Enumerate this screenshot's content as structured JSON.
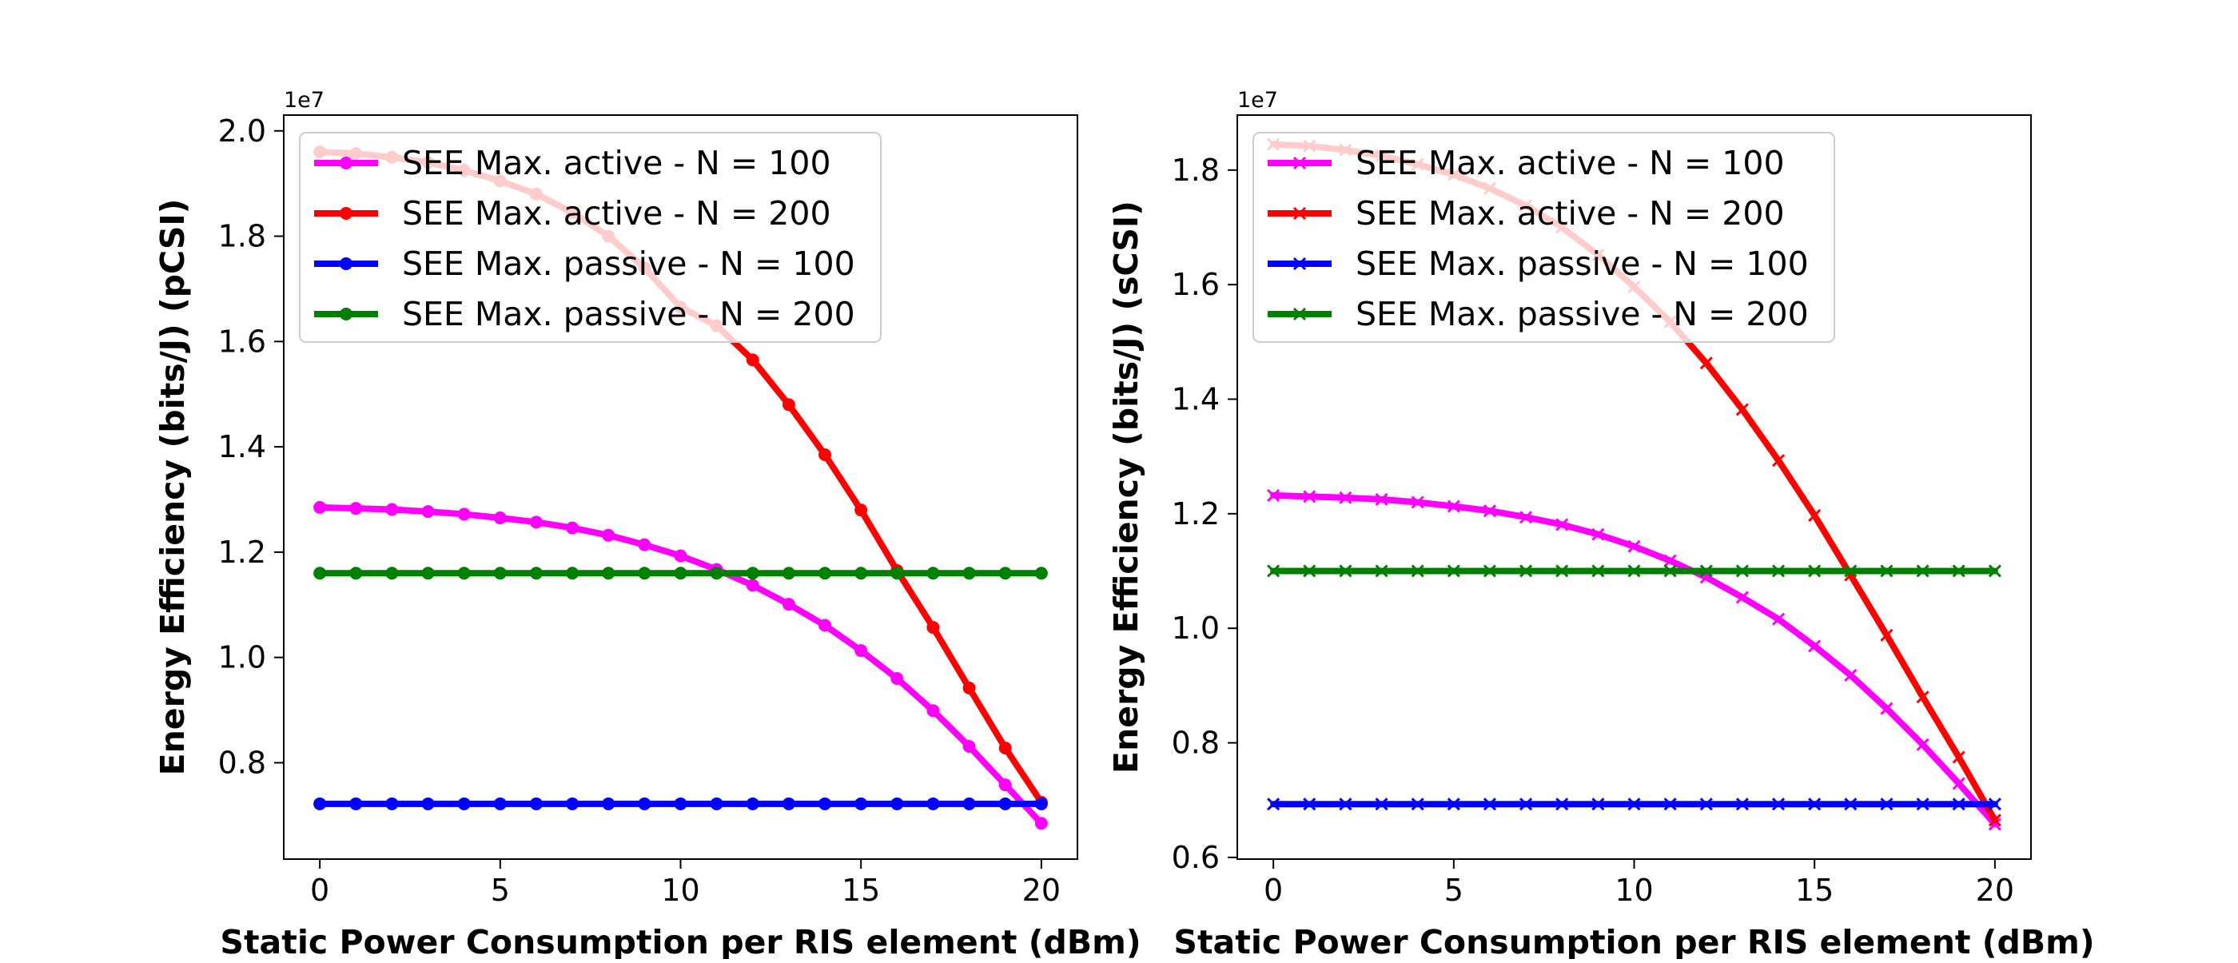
{
  "chart_data": [
    {
      "type": "line",
      "title": "",
      "xlabel": "Static Power Consumption per RIS element (dBm)",
      "ylabel": "Energy Efficiency (bits/J) (pCSI)",
      "y_offset_text": "1e7",
      "y_scale_factor": 10000000,
      "xlim": [
        -1,
        21
      ],
      "ylim": [
        0.617,
        2.03
      ],
      "x_ticks": [
        0,
        5,
        10,
        15,
        20
      ],
      "y_ticks": [
        0.8,
        1.0,
        1.2,
        1.4,
        1.6,
        1.8,
        2.0
      ],
      "grid": false,
      "legend_position": "upper-left",
      "marker": "circle",
      "x": [
        0,
        1,
        2,
        3,
        4,
        5,
        6,
        7,
        8,
        9,
        10,
        11,
        12,
        13,
        14,
        15,
        16,
        17,
        18,
        19,
        20
      ],
      "series": [
        {
          "name": "SEE Max. active - N = 100",
          "color": "#ff00ff",
          "values": [
            1.285,
            1.283,
            1.281,
            1.277,
            1.272,
            1.265,
            1.257,
            1.246,
            1.232,
            1.214,
            1.193,
            1.167,
            1.137,
            1.101,
            1.061,
            1.013,
            0.96,
            0.899,
            0.831,
            0.758,
            0.685
          ]
        },
        {
          "name": "SEE Max. active - N = 200",
          "color": "#ff0000",
          "values": [
            1.96,
            1.957,
            1.95,
            1.94,
            1.925,
            1.905,
            1.88,
            1.845,
            1.8,
            1.74,
            1.665,
            1.63,
            1.565,
            1.48,
            1.385,
            1.28,
            1.165,
            1.057,
            0.942,
            0.828,
            0.725
          ]
        },
        {
          "name": "SEE Max. passive - N = 100",
          "color": "#0000ff",
          "values": [
            0.722,
            0.722,
            0.722,
            0.722,
            0.722,
            0.722,
            0.722,
            0.722,
            0.722,
            0.722,
            0.722,
            0.722,
            0.722,
            0.722,
            0.722,
            0.722,
            0.722,
            0.722,
            0.722,
            0.722,
            0.722
          ]
        },
        {
          "name": "SEE Max. passive - N = 200",
          "color": "#008000",
          "values": [
            1.16,
            1.16,
            1.16,
            1.16,
            1.16,
            1.16,
            1.16,
            1.16,
            1.16,
            1.16,
            1.16,
            1.16,
            1.16,
            1.16,
            1.16,
            1.16,
            1.16,
            1.16,
            1.16,
            1.16,
            1.16
          ]
        }
      ]
    },
    {
      "type": "line",
      "title": "",
      "xlabel": "Static Power Consumption per RIS element (dBm)",
      "ylabel": "Energy Efficiency (bits/J) (sCSI)",
      "y_offset_text": "1e7",
      "y_scale_factor": 10000000,
      "xlim": [
        -1,
        21
      ],
      "ylim": [
        0.597,
        1.896
      ],
      "x_ticks": [
        0,
        5,
        10,
        15,
        20
      ],
      "y_ticks": [
        0.6,
        0.8,
        1.0,
        1.2,
        1.4,
        1.6,
        1.8
      ],
      "grid": false,
      "legend_position": "upper-left",
      "marker": "x",
      "x": [
        0,
        1,
        2,
        3,
        4,
        5,
        6,
        7,
        8,
        9,
        10,
        11,
        12,
        13,
        14,
        15,
        16,
        17,
        18,
        19,
        20
      ],
      "series": [
        {
          "name": "SEE Max. active - N = 100",
          "color": "#ff00ff",
          "values": [
            1.232,
            1.23,
            1.228,
            1.225,
            1.22,
            1.213,
            1.205,
            1.194,
            1.181,
            1.164,
            1.143,
            1.118,
            1.089,
            1.054,
            1.016,
            0.969,
            0.918,
            0.86,
            0.797,
            0.729,
            0.658
          ]
        },
        {
          "name": "SEE Max. active - N = 200",
          "color": "#ff0000",
          "values": [
            1.845,
            1.842,
            1.835,
            1.825,
            1.81,
            1.792,
            1.768,
            1.738,
            1.7,
            1.652,
            1.596,
            1.535,
            1.463,
            1.382,
            1.293,
            1.197,
            1.093,
            0.988,
            0.88,
            0.775,
            0.665
          ]
        },
        {
          "name": "SEE Max. passive - N = 100",
          "color": "#0000ff",
          "values": [
            0.693,
            0.693,
            0.693,
            0.693,
            0.693,
            0.693,
            0.693,
            0.693,
            0.693,
            0.693,
            0.693,
            0.693,
            0.693,
            0.693,
            0.693,
            0.693,
            0.693,
            0.693,
            0.693,
            0.693,
            0.693
          ]
        },
        {
          "name": "SEE Max. passive - N = 200",
          "color": "#008000",
          "values": [
            1.1,
            1.1,
            1.1,
            1.1,
            1.1,
            1.1,
            1.1,
            1.1,
            1.1,
            1.1,
            1.1,
            1.1,
            1.1,
            1.1,
            1.1,
            1.1,
            1.1,
            1.1,
            1.1,
            1.1,
            1.1
          ]
        }
      ]
    }
  ]
}
